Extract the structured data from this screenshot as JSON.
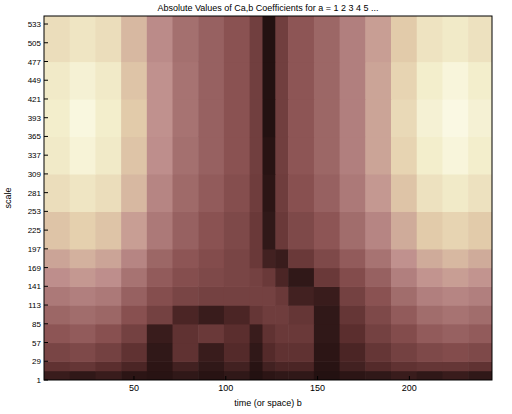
{
  "chart_data": {
    "type": "heatmap",
    "title": "Absolute Values of Ca,b Coefficients for a = 1 2 3 4 5 ...",
    "x_label": "time (or space) b",
    "y_label": "scale",
    "xlim": [
      1,
      245
    ],
    "ylim": [
      1,
      545
    ],
    "xticks": [
      50,
      100,
      150,
      200
    ],
    "yticks": [
      1,
      29,
      57,
      85,
      113,
      141,
      169,
      197,
      225,
      253,
      281,
      309,
      337,
      365,
      393,
      421,
      449,
      477,
      505,
      533
    ],
    "clim": [
      0,
      1
    ],
    "x_edges": [
      1,
      15,
      29,
      43,
      57,
      71,
      85,
      99,
      113,
      120,
      127,
      134,
      148,
      162,
      176,
      190,
      204,
      218,
      232,
      245
    ],
    "y_edges": [
      1,
      15,
      29,
      57,
      85,
      113,
      141,
      169,
      197,
      253,
      309,
      365,
      421,
      477,
      545
    ],
    "cells": [
      [
        0.08,
        0.06,
        0.08,
        0.05,
        0.04,
        0.06,
        0.04,
        0.06,
        0.03,
        0.05,
        0.06,
        0.06,
        0.03,
        0.05,
        0.06,
        0.08,
        0.06,
        0.08,
        0.06
      ],
      [
        0.18,
        0.2,
        0.16,
        0.12,
        0.05,
        0.1,
        0.06,
        0.1,
        0.04,
        0.1,
        0.12,
        0.12,
        0.04,
        0.1,
        0.14,
        0.18,
        0.2,
        0.2,
        0.18
      ],
      [
        0.28,
        0.3,
        0.26,
        0.18,
        0.06,
        0.18,
        0.08,
        0.14,
        0.06,
        0.14,
        0.18,
        0.18,
        0.05,
        0.12,
        0.2,
        0.26,
        0.3,
        0.32,
        0.3
      ],
      [
        0.36,
        0.38,
        0.34,
        0.26,
        0.08,
        0.18,
        0.22,
        0.16,
        0.08,
        0.18,
        0.22,
        0.22,
        0.06,
        0.16,
        0.26,
        0.32,
        0.38,
        0.4,
        0.38
      ],
      [
        0.42,
        0.44,
        0.42,
        0.34,
        0.26,
        0.12,
        0.08,
        0.12,
        0.2,
        0.24,
        0.24,
        0.2,
        0.06,
        0.2,
        0.3,
        0.38,
        0.44,
        0.46,
        0.44
      ],
      [
        0.48,
        0.5,
        0.48,
        0.4,
        0.33,
        0.28,
        0.26,
        0.26,
        0.26,
        0.26,
        0.22,
        0.1,
        0.08,
        0.26,
        0.35,
        0.44,
        0.5,
        0.52,
        0.5
      ],
      [
        0.55,
        0.58,
        0.55,
        0.46,
        0.38,
        0.33,
        0.3,
        0.28,
        0.26,
        0.22,
        0.12,
        0.06,
        0.22,
        0.32,
        0.4,
        0.5,
        0.57,
        0.6,
        0.57
      ],
      [
        0.62,
        0.66,
        0.62,
        0.52,
        0.42,
        0.36,
        0.32,
        0.28,
        0.22,
        0.1,
        0.08,
        0.22,
        0.3,
        0.38,
        0.46,
        0.56,
        0.64,
        0.68,
        0.64
      ],
      [
        0.72,
        0.76,
        0.72,
        0.6,
        0.48,
        0.4,
        0.35,
        0.3,
        0.22,
        0.06,
        0.22,
        0.3,
        0.36,
        0.44,
        0.52,
        0.64,
        0.74,
        0.78,
        0.74
      ],
      [
        0.82,
        0.86,
        0.82,
        0.68,
        0.52,
        0.43,
        0.38,
        0.33,
        0.24,
        0.05,
        0.24,
        0.34,
        0.4,
        0.48,
        0.58,
        0.72,
        0.84,
        0.88,
        0.84
      ],
      [
        0.88,
        0.93,
        0.88,
        0.72,
        0.55,
        0.45,
        0.4,
        0.35,
        0.25,
        0.04,
        0.25,
        0.36,
        0.42,
        0.5,
        0.62,
        0.78,
        0.9,
        0.94,
        0.9
      ],
      [
        0.9,
        0.95,
        0.9,
        0.74,
        0.56,
        0.46,
        0.4,
        0.35,
        0.25,
        0.03,
        0.25,
        0.36,
        0.42,
        0.5,
        0.62,
        0.8,
        0.92,
        0.96,
        0.92
      ],
      [
        0.88,
        0.92,
        0.88,
        0.72,
        0.56,
        0.46,
        0.4,
        0.35,
        0.25,
        0.03,
        0.25,
        0.36,
        0.42,
        0.5,
        0.62,
        0.78,
        0.9,
        0.94,
        0.9
      ],
      [
        0.82,
        0.86,
        0.82,
        0.68,
        0.54,
        0.45,
        0.4,
        0.35,
        0.25,
        0.03,
        0.25,
        0.36,
        0.42,
        0.5,
        0.6,
        0.74,
        0.85,
        0.88,
        0.84
      ]
    ]
  }
}
